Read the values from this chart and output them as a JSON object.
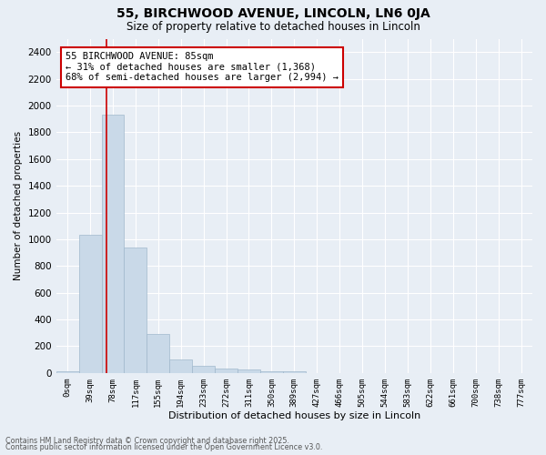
{
  "title1": "55, BIRCHWOOD AVENUE, LINCOLN, LN6 0JA",
  "title2": "Size of property relative to detached houses in Lincoln",
  "xlabel": "Distribution of detached houses by size in Lincoln",
  "ylabel": "Number of detached properties",
  "categories": [
    "0sqm",
    "39sqm",
    "78sqm",
    "117sqm",
    "155sqm",
    "194sqm",
    "233sqm",
    "272sqm",
    "311sqm",
    "350sqm",
    "389sqm",
    "427sqm",
    "466sqm",
    "505sqm",
    "544sqm",
    "583sqm",
    "622sqm",
    "661sqm",
    "700sqm",
    "738sqm",
    "777sqm"
  ],
  "values": [
    15,
    1030,
    1930,
    940,
    290,
    100,
    55,
    35,
    25,
    15,
    10,
    0,
    0,
    0,
    0,
    0,
    0,
    0,
    0,
    0,
    0
  ],
  "bar_color": "#c9d9e8",
  "bar_edgecolor": "#a0b8cc",
  "vline_x": 1.72,
  "vline_color": "#cc0000",
  "annotation_text": "55 BIRCHWOOD AVENUE: 85sqm\n← 31% of detached houses are smaller (1,368)\n68% of semi-detached houses are larger (2,994) →",
  "annotation_box_edgecolor": "#cc0000",
  "annotation_box_facecolor": "#ffffff",
  "ylim": [
    0,
    2500
  ],
  "yticks": [
    0,
    200,
    400,
    600,
    800,
    1000,
    1200,
    1400,
    1600,
    1800,
    2000,
    2200,
    2400
  ],
  "bg_color": "#e8eef5",
  "plot_bg_color": "#e8eef5",
  "grid_color": "#ffffff",
  "footer1": "Contains HM Land Registry data © Crown copyright and database right 2025.",
  "footer2": "Contains public sector information licensed under the Open Government Licence v3.0."
}
